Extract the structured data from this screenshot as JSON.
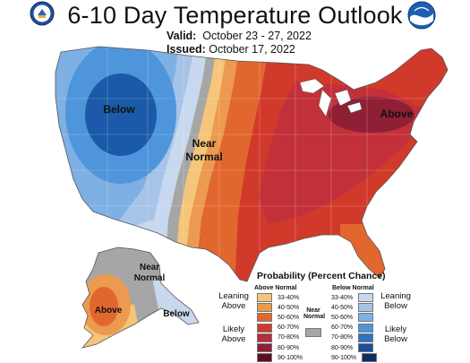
{
  "title": "6-10 Day Temperature Outlook",
  "valid_label": "Valid:",
  "valid_dates": "October 23 - 27, 2022",
  "issued_label": "Issued:",
  "issued_date": "October 17, 2022",
  "map_labels": {
    "below_west": "Below",
    "near_normal_line1": "Near",
    "near_normal_line2": "Normal",
    "above_east": "Above",
    "ak_near_line1": "Near",
    "ak_near_line2": "Normal",
    "ak_above": "Above",
    "ak_below": "Below"
  },
  "legend": {
    "title": "Probability (Percent Chance)",
    "above_header": "Above Normal",
    "below_header": "Below Normal",
    "near_header_line1": "Near",
    "near_header_line2": "Normal",
    "leaning_above_1": "Leaning",
    "leaning_above_2": "Above",
    "likely_above_1": "Likely",
    "likely_above_2": "Above",
    "leaning_below_1": "Leaning",
    "leaning_below_2": "Below",
    "likely_below_1": "Likely",
    "likely_below_2": "Below",
    "ranges": [
      "33-40%",
      "40-50%",
      "50-60%",
      "60-70%",
      "70-80%",
      "80-90%",
      "90-100%"
    ],
    "above_colors": [
      "#f5c57a",
      "#eb9a4f",
      "#e2672e",
      "#d13a2b",
      "#b82a3c",
      "#8f1f35",
      "#5c0f22"
    ],
    "below_colors": [
      "#c8d8ee",
      "#a6c4e8",
      "#7fb0e4",
      "#4f95db",
      "#2b73c6",
      "#1a4f9c",
      "#0d2c66"
    ],
    "near_color": "#a6a6a6"
  }
}
